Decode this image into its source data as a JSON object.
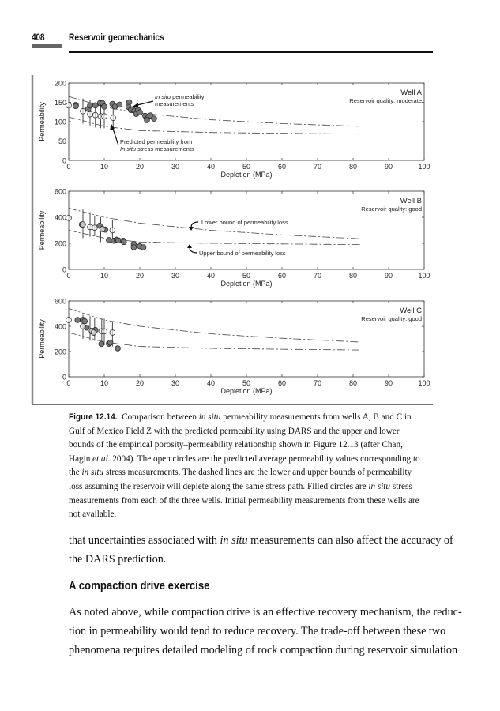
{
  "header": {
    "page_number": "408",
    "running_title": "Reservoir geomechanics"
  },
  "chart_data": [
    {
      "type": "scatter",
      "title": "",
      "xlabel": "Depletion (MPa)",
      "ylabel": "Permeability",
      "xlim": [
        0,
        100
      ],
      "ylim": [
        0,
        200
      ],
      "xticks": [
        0,
        10,
        20,
        30,
        40,
        50,
        60,
        70,
        80,
        90,
        100
      ],
      "yticks": [
        0,
        50,
        100,
        150,
        200
      ],
      "well_label": "Well A",
      "quality_label": "Reservoir quality: moderate",
      "annotations": [
        {
          "line1_italic": "In situ",
          "line1": " permeability",
          "line2": "measurements"
        },
        {
          "line1": "Predicted permeability from",
          "line2_italic": "In situ",
          "line2": " stress measurements"
        }
      ],
      "predicted_open": [
        [
          0,
          142
        ],
        [
          4,
          127
        ],
        [
          6,
          119
        ],
        [
          7.5,
          117
        ],
        [
          9,
          114
        ],
        [
          10,
          114
        ],
        [
          12.5,
          110
        ]
      ],
      "error_bars": [
        [
          4,
          160,
          95
        ],
        [
          6,
          155,
          90
        ],
        [
          7.5,
          150,
          85
        ],
        [
          9,
          150,
          83
        ],
        [
          10,
          148,
          83
        ],
        [
          12.5,
          145,
          80
        ]
      ],
      "in_situ_filled": [
        [
          2,
          143
        ],
        [
          2,
          140
        ],
        [
          5.5,
          133
        ],
        [
          6,
          142
        ],
        [
          7.5,
          142
        ],
        [
          8.8,
          148
        ],
        [
          9.5,
          148
        ],
        [
          10,
          139
        ],
        [
          12.3,
          146
        ],
        [
          13,
          139
        ],
        [
          14.3,
          144
        ],
        [
          17,
          150
        ],
        [
          16.8,
          138
        ],
        [
          17.5,
          130
        ],
        [
          18,
          132
        ],
        [
          18.5,
          128
        ],
        [
          19,
          120
        ],
        [
          19.5,
          130
        ],
        [
          20,
          124
        ],
        [
          21.5,
          115
        ],
        [
          22,
          108
        ],
        [
          22.5,
          113
        ],
        [
          23,
          116
        ],
        [
          24,
          108
        ],
        [
          22,
          104
        ]
      ],
      "upper_curve": [
        [
          0,
          165
        ],
        [
          10,
          138
        ],
        [
          20,
          122
        ],
        [
          40,
          105
        ],
        [
          60,
          95
        ],
        [
          82,
          88
        ]
      ],
      "lower_curve": [
        [
          0,
          112
        ],
        [
          10,
          88
        ],
        [
          20,
          77
        ],
        [
          40,
          72
        ],
        [
          60,
          70
        ],
        [
          82,
          68
        ]
      ]
    },
    {
      "type": "scatter",
      "title": "",
      "xlabel": "Depletion (MPa)",
      "ylabel": "Permeability",
      "xlim": [
        0,
        100
      ],
      "ylim": [
        0,
        600
      ],
      "xticks": [
        0,
        10,
        20,
        30,
        40,
        50,
        60,
        70,
        80,
        90,
        100
      ],
      "yticks": [
        0,
        200,
        400,
        600
      ],
      "well_label": "Well B",
      "quality_label": "Reservoir quality: good",
      "annotations": [
        {
          "line1": "Lower bound of permeability loss"
        },
        {
          "line1": "Upper bound of permeability loss"
        }
      ],
      "predicted_open": [
        [
          0,
          395
        ],
        [
          4,
          345
        ],
        [
          6,
          325
        ],
        [
          7.3,
          320
        ],
        [
          9.5,
          310
        ],
        [
          12.3,
          300
        ]
      ],
      "error_bars": [
        [
          4,
          460,
          240
        ],
        [
          6,
          440,
          250
        ],
        [
          7.3,
          410,
          255
        ],
        [
          9,
          400,
          210
        ],
        [
          12.3,
          380,
          200
        ]
      ],
      "in_situ_filled": [
        [
          3.7,
          345
        ],
        [
          8.7,
          335
        ],
        [
          9.5,
          310
        ],
        [
          10.3,
          305
        ],
        [
          11.3,
          225
        ],
        [
          12.7,
          220
        ],
        [
          13.5,
          228
        ],
        [
          14,
          222
        ],
        [
          15.3,
          220
        ],
        [
          15.5,
          210
        ],
        [
          18.3,
          195
        ],
        [
          18.3,
          170
        ],
        [
          20,
          178
        ],
        [
          21,
          170
        ]
      ],
      "upper_curve": [
        [
          0,
          470
        ],
        [
          10,
          400
        ],
        [
          20,
          355
        ],
        [
          40,
          300
        ],
        [
          60,
          265
        ],
        [
          82,
          235
        ]
      ],
      "lower_curve": [
        [
          0,
          300
        ],
        [
          10,
          240
        ],
        [
          20,
          210
        ],
        [
          40,
          200
        ],
        [
          60,
          195
        ],
        [
          82,
          190
        ]
      ]
    },
    {
      "type": "scatter",
      "title": "",
      "xlabel": "Depletion (MPa)",
      "ylabel": "Permeability",
      "xlim": [
        0,
        100
      ],
      "ylim": [
        0,
        600
      ],
      "xticks": [
        0,
        10,
        20,
        30,
        40,
        50,
        60,
        70,
        80,
        90,
        100
      ],
      "yticks": [
        0,
        200,
        400,
        600
      ],
      "well_label": "Well C",
      "quality_label": "Reservoir quality: good",
      "annotations": [],
      "predicted_open": [
        [
          0,
          450
        ],
        [
          4,
          400
        ],
        [
          6.5,
          365
        ],
        [
          7,
          350
        ],
        [
          9.2,
          360
        ],
        [
          10,
          360
        ],
        [
          12.3,
          350
        ]
      ],
      "error_bars": [
        [
          4,
          490,
          300
        ],
        [
          6,
          480,
          285
        ],
        [
          7.3,
          470,
          285
        ],
        [
          9.3,
          460,
          260
        ],
        [
          10,
          460,
          250
        ],
        [
          12.3,
          440,
          240
        ]
      ],
      "in_situ_filled": [
        [
          2.5,
          450
        ],
        [
          4,
          450
        ],
        [
          4.5,
          440
        ],
        [
          5,
          390
        ],
        [
          6.5,
          360
        ],
        [
          7,
          350
        ],
        [
          7.5,
          370
        ],
        [
          9.2,
          260
        ],
        [
          11.3,
          262
        ],
        [
          11.7,
          270
        ],
        [
          13.8,
          225
        ]
      ],
      "upper_curve": [
        [
          0,
          540
        ],
        [
          10,
          450
        ],
        [
          20,
          400
        ],
        [
          40,
          340
        ],
        [
          60,
          305
        ],
        [
          82,
          275
        ]
      ],
      "lower_curve": [
        [
          0,
          350
        ],
        [
          10,
          275
        ],
        [
          20,
          240
        ],
        [
          40,
          225
        ],
        [
          60,
          218
        ],
        [
          82,
          212
        ]
      ]
    }
  ],
  "caption": {
    "label": "Figure 12.14.",
    "lines": [
      [
        {
          "t": " Comparison between "
        },
        {
          "t": "in situ",
          "i": true
        },
        {
          "t": " permeability measurements from wells A, B and C in"
        }
      ],
      [
        {
          "t": "Gulf of Mexico Field Z with the predicted permeability using DARS and the upper and lower"
        }
      ],
      [
        {
          "t": "bounds of the empirical porosity–permeability relationship shown in Figure 12.13 (after Chan,"
        }
      ],
      [
        {
          "t": "Hagin "
        },
        {
          "t": "et al.",
          "i": true
        },
        {
          "t": " 2004). The open circles are the predicted average permeability values corresponding to"
        }
      ],
      [
        {
          "t": "the "
        },
        {
          "t": "in situ",
          "i": true
        },
        {
          "t": " stress measurements. The dashed lines are the lower and upper bounds of permeability"
        }
      ],
      [
        {
          "t": "loss assuming the reservoir will deplete along the same stress path. Filled circles are "
        },
        {
          "t": "in situ",
          "i": true
        },
        {
          "t": " stress"
        }
      ],
      [
        {
          "t": "measurements from each of the three wells. Initial permeability measurements from these wells are"
        }
      ],
      [
        {
          "t": "not available."
        }
      ]
    ]
  },
  "body1": [
    [
      {
        "t": "that uncertainties associated with "
      },
      {
        "t": "in situ",
        "i": true
      },
      {
        "t": " measurements can also affect the accuracy of"
      }
    ],
    [
      {
        "t": "the DARS prediction."
      }
    ]
  ],
  "section_heading": "A compaction drive exercise",
  "body2": [
    [
      {
        "t": "As noted above, while compaction drive is an effective recovery mechanism, the reduc-"
      }
    ],
    [
      {
        "t": "tion in permeability would tend to reduce recovery. The trade-off between these two"
      }
    ],
    [
      {
        "t": "phenomena requires detailed modeling of rock compaction during reservoir simulation"
      }
    ]
  ]
}
